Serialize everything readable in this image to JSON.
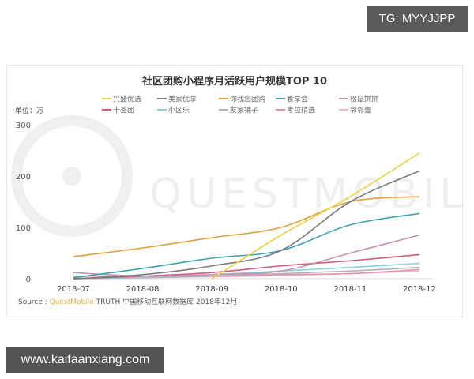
{
  "overlays": {
    "tag_label": "TG: MYYJJPP",
    "site_label": "www.kaifaanxiang.com"
  },
  "watermark": "QUESTMOBILE",
  "source": {
    "prefix": "Source :",
    "brand": "QuestMobile",
    "text": "TRUTH 中国移动互联网数据库 2018年12月"
  },
  "chart_data": {
    "type": "line",
    "title": "社区团购小程序月活跃用户规模TOP 10",
    "ylabel": "单位：万",
    "xlabel": "",
    "ylim": [
      0,
      300
    ],
    "yticks": [
      0,
      100,
      200,
      300
    ],
    "grid": false,
    "legend_position": "top",
    "categories": [
      "2018-07",
      "2018-08",
      "2018-09",
      "2018-10",
      "2018-11",
      "2018-12"
    ],
    "series": [
      {
        "name": "兴盛优选",
        "color": "#e8d24a",
        "values": [
          null,
          null,
          0,
          85,
          160,
          245
        ]
      },
      {
        "name": "美家优享",
        "color": "#7a7a80",
        "values": [
          0,
          8,
          25,
          55,
          150,
          210
        ]
      },
      {
        "name": "你我您团购",
        "color": "#e0a040",
        "values": [
          43,
          60,
          80,
          100,
          150,
          160
        ]
      },
      {
        "name": "食享会",
        "color": "#3fa0b5",
        "values": [
          2,
          20,
          40,
          55,
          105,
          127
        ]
      },
      {
        "name": "松鼠拼拼",
        "color": "#c890b0",
        "values": [
          12,
          5,
          8,
          15,
          50,
          85
        ]
      },
      {
        "name": "十荟团",
        "color": "#d05a7a",
        "values": [
          0,
          5,
          12,
          25,
          35,
          47
        ]
      },
      {
        "name": "小区乐",
        "color": "#88d0e0",
        "values": [
          0,
          3,
          8,
          15,
          22,
          30
        ]
      },
      {
        "name": "友家铺子",
        "color": "#b0b0b8",
        "values": [
          0,
          2,
          5,
          10,
          15,
          22
        ]
      },
      {
        "name": "考拉精选",
        "color": "#e890a8",
        "values": [
          5,
          5,
          5,
          8,
          10,
          18
        ]
      },
      {
        "name": "邻邻壹",
        "color": "#f0b8d0",
        "values": [
          0,
          2,
          4,
          6,
          10,
          15
        ]
      }
    ]
  }
}
